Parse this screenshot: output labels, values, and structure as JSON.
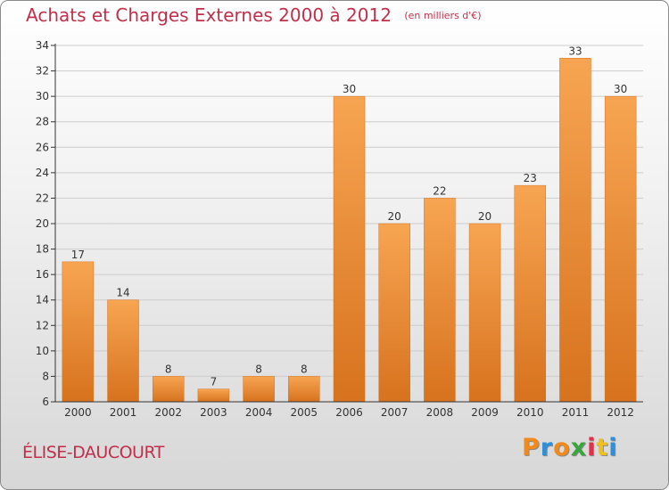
{
  "header": {
    "title": "Achats et Charges Externes 2000 à 2012",
    "subtitle": "(en milliers d'€)"
  },
  "footer": {
    "commune": "ÉLISE-DAUCOURT",
    "brand": "Proxiti"
  },
  "colors": {
    "title": "#c0304a",
    "bar_top": "#f7a552",
    "bar_bottom": "#d7721e",
    "grid": "#cccccc",
    "axis": "#333333",
    "brand_letters": [
      "#f08a1d",
      "#2f8fd8",
      "#f08a1d",
      "#3aa53a",
      "#e0304a",
      "#f0c01d",
      "#2f8fd8"
    ]
  },
  "chart_data": {
    "type": "bar",
    "title": "Achats et Charges Externes 2000 à 2012",
    "subtitle": "(en milliers d'€)",
    "categories": [
      "2000",
      "2001",
      "2002",
      "2003",
      "2004",
      "2005",
      "2006",
      "2007",
      "2008",
      "2009",
      "2010",
      "2011",
      "2012"
    ],
    "values": [
      17,
      14,
      8,
      7,
      8,
      8,
      30,
      20,
      22,
      20,
      23,
      33,
      30
    ],
    "data_labels": [
      "17",
      "14",
      "8",
      "7",
      "8",
      "8",
      "30",
      "20",
      "22",
      "20",
      "23",
      "33",
      "30"
    ],
    "xlabel": "",
    "ylabel": "",
    "ylim": [
      6,
      34
    ],
    "yticks": [
      6,
      8,
      10,
      12,
      14,
      16,
      18,
      20,
      22,
      24,
      26,
      28,
      30,
      32,
      34
    ],
    "ytick_labels": [
      "6",
      "8",
      "10",
      "12",
      "14",
      "16",
      "18",
      "20",
      "22",
      "24",
      "26",
      "28",
      "30",
      "32",
      "34"
    ],
    "grid": true,
    "legend": "none"
  }
}
